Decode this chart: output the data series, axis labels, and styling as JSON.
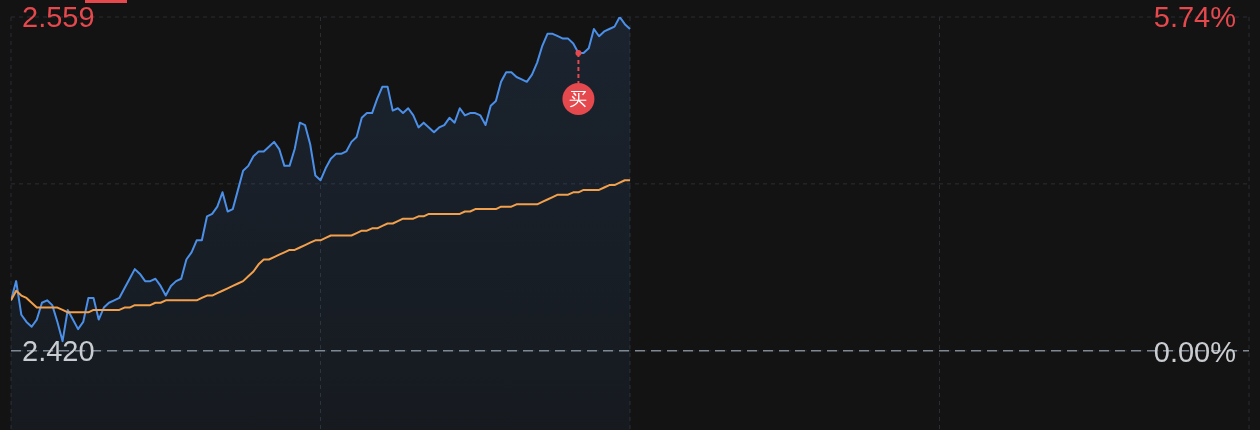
{
  "chart_data": {
    "type": "area",
    "categories": [
      null,
      null,
      null,
      null,
      null,
      null,
      null,
      null,
      null,
      null,
      null,
      null,
      null,
      null,
      null,
      null,
      null,
      null,
      null,
      null,
      null,
      null,
      null,
      null,
      null,
      null,
      null,
      null,
      null,
      null,
      null,
      null,
      null,
      null,
      null,
      null,
      null,
      null,
      null,
      null,
      null,
      null,
      null,
      null,
      null,
      null,
      null,
      null,
      null,
      null,
      null,
      null,
      null,
      null,
      null,
      null,
      null,
      null,
      null,
      null,
      null,
      null,
      null,
      null,
      null,
      null,
      null,
      null,
      null,
      null,
      null,
      null,
      null,
      null,
      null,
      null,
      null,
      null,
      null,
      null,
      null,
      null,
      null,
      null,
      null,
      null,
      null,
      null,
      null,
      null,
      null,
      null,
      null,
      null,
      null,
      null,
      null,
      null,
      null,
      null,
      null,
      null,
      null,
      null,
      null,
      null,
      null,
      null,
      null,
      null,
      null,
      null,
      null,
      null,
      null,
      null,
      null,
      null,
      null,
      null,
      null,
      null,
      null,
      null,
      null,
      null,
      null,
      null,
      null,
      null,
      null,
      null,
      null,
      null,
      null,
      null,
      null,
      null,
      null,
      null,
      null,
      null,
      null,
      null,
      null,
      null,
      null,
      null,
      null,
      null,
      null,
      null,
      null,
      null,
      null,
      null,
      null,
      null,
      null,
      null,
      null,
      null,
      null,
      null,
      null,
      null,
      null,
      null,
      null,
      null,
      null,
      null,
      null,
      null,
      null,
      null,
      null,
      null,
      null,
      null,
      null,
      null,
      null,
      null,
      null,
      null,
      null,
      null,
      null,
      null,
      null,
      null,
      null,
      null,
      null,
      null,
      null,
      null,
      null,
      null,
      null,
      null,
      null,
      null,
      null,
      null,
      null,
      null,
      null,
      null,
      null,
      null,
      null,
      null,
      null,
      null,
      null,
      null,
      null,
      null,
      null,
      null,
      null,
      null,
      null,
      null,
      null,
      null,
      null,
      null,
      null,
      null,
      null,
      null,
      null,
      null,
      null,
      null,
      null,
      null,
      null
    ],
    "series": [
      {
        "color": "#4b8fe8",
        "values": [
          2.441,
          2.449,
          2.435,
          2.432,
          2.43,
          2.433,
          2.44,
          2.441,
          2.439,
          2.432,
          2.424,
          2.437,
          2.433,
          2.429,
          2.432,
          2.442,
          2.442,
          2.433,
          2.438,
          2.44,
          2.441,
          2.442,
          2.446,
          2.45,
          2.454,
          2.452,
          2.449,
          2.449,
          2.45,
          2.447,
          2.443,
          2.447,
          2.449,
          2.45,
          2.458,
          2.461,
          2.466,
          2.466,
          2.476,
          2.477,
          2.48,
          2.486,
          2.478,
          2.479,
          2.487,
          2.495,
          2.497,
          2.501,
          2.503,
          2.503,
          2.505,
          2.507,
          2.504,
          2.497,
          2.497,
          2.504,
          2.515,
          2.514,
          2.506,
          2.493,
          2.491,
          2.496,
          2.5,
          2.502,
          2.502,
          2.503,
          2.507,
          2.509,
          2.517,
          2.519,
          2.519,
          2.525,
          2.53,
          2.53,
          2.52,
          2.521,
          2.519,
          2.521,
          2.518,
          2.513,
          2.515,
          2.513,
          2.511,
          2.513,
          2.514,
          2.517,
          2.515,
          2.521,
          2.518,
          2.519,
          2.519,
          2.518,
          2.514,
          2.522,
          2.524,
          2.532,
          2.536,
          2.536,
          2.534,
          2.533,
          2.532,
          2.535,
          2.54,
          2.547,
          2.552,
          2.552,
          2.551,
          2.55,
          2.55,
          2.548,
          2.544,
          2.544,
          2.546,
          2.554,
          2.551,
          2.553,
          2.554,
          2.555,
          2.559,
          2.556,
          2.554,
          null,
          null,
          null,
          null,
          null,
          null,
          null,
          null,
          null,
          null,
          null,
          null,
          null,
          null,
          null,
          null,
          null,
          null,
          null,
          null,
          null,
          null,
          null,
          null,
          null,
          null,
          null,
          null,
          null,
          null,
          null,
          null,
          null,
          null,
          null,
          null,
          null,
          null,
          null,
          null,
          null,
          null,
          null,
          null,
          null,
          null,
          null,
          null,
          null,
          null,
          null,
          null,
          null,
          null,
          null,
          null,
          null,
          null,
          null,
          null,
          null,
          null,
          null,
          null,
          null,
          null,
          null,
          null,
          null,
          null,
          null,
          null,
          null,
          null,
          null,
          null,
          null,
          null,
          null,
          null,
          null,
          null,
          null,
          null,
          null,
          null,
          null,
          null,
          null,
          null,
          null,
          null,
          null,
          null,
          null,
          null,
          null,
          null,
          null,
          null,
          null,
          null,
          null,
          null,
          null,
          null,
          null,
          null,
          null,
          null,
          null,
          null,
          null,
          null,
          null,
          null,
          null,
          null,
          null,
          null
        ]
      },
      {
        "type": "line",
        "color": "#f2a04c",
        "values": [
          2.441,
          2.445,
          2.443,
          2.442,
          2.44,
          2.438,
          2.438,
          2.438,
          2.438,
          2.438,
          2.437,
          2.436,
          2.436,
          2.436,
          2.436,
          2.436,
          2.437,
          2.437,
          2.437,
          2.437,
          2.437,
          2.437,
          2.438,
          2.438,
          2.439,
          2.439,
          2.439,
          2.439,
          2.44,
          2.44,
          2.441,
          2.441,
          2.441,
          2.441,
          2.441,
          2.441,
          2.441,
          2.442,
          2.443,
          2.443,
          2.444,
          2.445,
          2.446,
          2.447,
          2.448,
          2.449,
          2.451,
          2.453,
          2.456,
          2.458,
          2.458,
          2.459,
          2.46,
          2.461,
          2.462,
          2.462,
          2.463,
          2.464,
          2.465,
          2.466,
          2.466,
          2.467,
          2.468,
          2.468,
          2.468,
          2.468,
          2.468,
          2.469,
          2.47,
          2.47,
          2.471,
          2.471,
          2.472,
          2.473,
          2.473,
          2.474,
          2.475,
          2.475,
          2.475,
          2.476,
          2.476,
          2.477,
          2.477,
          2.477,
          2.477,
          2.477,
          2.477,
          2.477,
          2.478,
          2.478,
          2.479,
          2.479,
          2.479,
          2.479,
          2.479,
          2.48,
          2.48,
          2.48,
          2.481,
          2.481,
          2.481,
          2.481,
          2.481,
          2.482,
          2.483,
          2.484,
          2.485,
          2.485,
          2.485,
          2.486,
          2.486,
          2.487,
          2.487,
          2.487,
          2.487,
          2.488,
          2.489,
          2.489,
          2.49,
          2.491,
          2.491,
          null,
          null,
          null,
          null,
          null,
          null,
          null,
          null,
          null,
          null,
          null,
          null,
          null,
          null,
          null,
          null,
          null,
          null,
          null,
          null,
          null,
          null,
          null,
          null,
          null,
          null,
          null,
          null,
          null,
          null,
          null,
          null,
          null,
          null,
          null,
          null,
          null,
          null,
          null,
          null,
          null,
          null,
          null,
          null,
          null,
          null,
          null,
          null,
          null,
          null,
          null,
          null,
          null,
          null,
          null,
          null,
          null,
          null,
          null,
          null,
          null,
          null,
          null,
          null,
          null,
          null,
          null,
          null,
          null,
          null,
          null,
          null,
          null,
          null,
          null,
          null,
          null,
          null,
          null,
          null,
          null,
          null,
          null,
          null,
          null,
          null,
          null,
          null,
          null,
          null,
          null,
          null,
          null,
          null,
          null,
          null,
          null,
          null,
          null,
          null,
          null,
          null,
          null,
          null,
          null,
          null,
          null,
          null,
          null,
          null,
          null,
          null,
          null,
          null,
          null,
          null,
          null,
          null,
          null,
          null
        ]
      },
      {
        "name": "买",
        "type": "scatter",
        "color": "#e5484d",
        "values": [
          null,
          null,
          null,
          null,
          null,
          null,
          null,
          null,
          null,
          null,
          null,
          null,
          null,
          null,
          null,
          null,
          null,
          null,
          null,
          null,
          null,
          null,
          null,
          null,
          null,
          null,
          null,
          null,
          null,
          null,
          null,
          null,
          null,
          null,
          null,
          null,
          null,
          null,
          null,
          null,
          null,
          null,
          null,
          null,
          null,
          null,
          null,
          null,
          null,
          null,
          null,
          null,
          null,
          null,
          null,
          null,
          null,
          null,
          null,
          null,
          null,
          null,
          null,
          null,
          null,
          null,
          null,
          null,
          null,
          null,
          null,
          null,
          null,
          null,
          null,
          null,
          null,
          null,
          null,
          null,
          null,
          null,
          null,
          null,
          null,
          null,
          null,
          null,
          null,
          null,
          null,
          null,
          null,
          null,
          null,
          null,
          null,
          null,
          null,
          null,
          null,
          null,
          null,
          null,
          null,
          null,
          null,
          null,
          null,
          null,
          2.544,
          null,
          null,
          null,
          null,
          null,
          null,
          null,
          null,
          null,
          null,
          null,
          null,
          null,
          null,
          null,
          null,
          null,
          null,
          null,
          null,
          null,
          null,
          null,
          null,
          null,
          null,
          null,
          null,
          null,
          null,
          null,
          null,
          null,
          null,
          null,
          null,
          null,
          null,
          null,
          null,
          null,
          null,
          null,
          null,
          null,
          null,
          null,
          null,
          null,
          null,
          null,
          null,
          null,
          null,
          null,
          null,
          null,
          null,
          null,
          null,
          null,
          null,
          null,
          null,
          null,
          null,
          null,
          null,
          null,
          null,
          null,
          null,
          null,
          null,
          null,
          null,
          null,
          null,
          null,
          null,
          null,
          null,
          null,
          null,
          null,
          null,
          null,
          null,
          null,
          null,
          null,
          null,
          null,
          null,
          null,
          null,
          null,
          null,
          null,
          null,
          null,
          null,
          null,
          null,
          null,
          null,
          null,
          null,
          null,
          null,
          null,
          null,
          null,
          null,
          null,
          null,
          null,
          null,
          null,
          null,
          null,
          null,
          null,
          null,
          null,
          null,
          null,
          null,
          null,
          null
        ]
      }
    ],
    "ylim": [
      2.387,
      2.559
    ],
    "yticks": [
      2.559,
      {
        "value": 2.4895,
        "label": null
      },
      {
        "value": 2.42,
        "label": "2.420"
      }
    ],
    "y2lim": [
      -1.35,
      5.74
    ],
    "y2ticks": [
      {
        "value": 5.74,
        "label": "5.74%"
      },
      {
        "value": 0,
        "label": "0.00%"
      }
    ],
    "grid": true,
    "ref_lines": [
      {
        "axis": "y",
        "value": 2.42,
        "color": "#7f8792",
        "line_style": "dashed"
      }
    ]
  }
}
